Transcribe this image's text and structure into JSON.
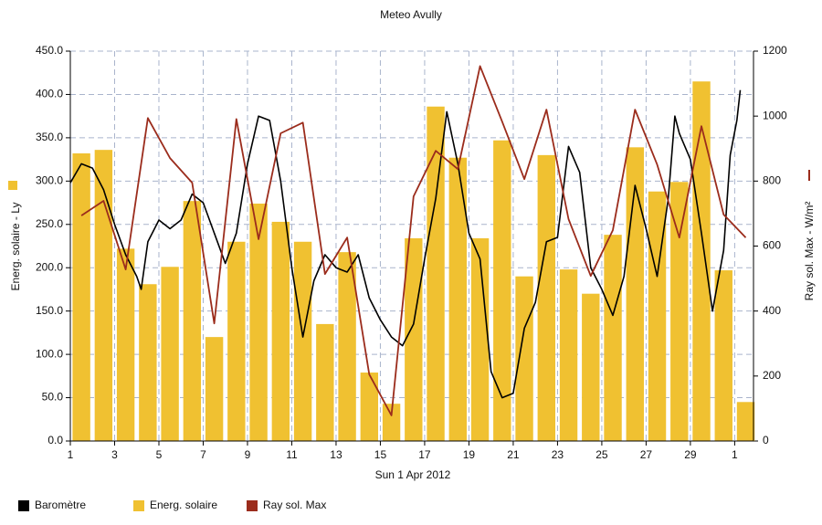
{
  "chart_data": {
    "type": "bar",
    "title": "Meteo  Avully",
    "xlabel": "Sun 1 Apr 2012",
    "ylabel": "Energ. solaire - Ly",
    "y2label": "Ray sol. Max - W/m²",
    "xlim": [
      0,
      30.85
    ],
    "xticks": [
      {
        "value": 0,
        "label": "1"
      },
      {
        "value": 2,
        "label": "3"
      },
      {
        "value": 4,
        "label": "5"
      },
      {
        "value": 6,
        "label": "7"
      },
      {
        "value": 8,
        "label": "9"
      },
      {
        "value": 10,
        "label": "11"
      },
      {
        "value": 12,
        "label": "13"
      },
      {
        "value": 14,
        "label": "15"
      },
      {
        "value": 16,
        "label": "17"
      },
      {
        "value": 18,
        "label": "19"
      },
      {
        "value": 20,
        "label": "21"
      },
      {
        "value": 22,
        "label": "23"
      },
      {
        "value": 24,
        "label": "25"
      },
      {
        "value": 26,
        "label": "27"
      },
      {
        "value": 28,
        "label": "29"
      },
      {
        "value": 30,
        "label": "1"
      }
    ],
    "ylim": [
      0,
      450
    ],
    "yticks": [
      {
        "value": 0,
        "label": "0.0"
      },
      {
        "value": 50,
        "label": "50.0"
      },
      {
        "value": 100,
        "label": "100.0"
      },
      {
        "value": 150,
        "label": "150.0"
      },
      {
        "value": 200,
        "label": "200.0"
      },
      {
        "value": 250,
        "label": "250.0"
      },
      {
        "value": 300,
        "label": "300.0"
      },
      {
        "value": 350,
        "label": "350.0"
      },
      {
        "value": 400,
        "label": "400.0"
      },
      {
        "value": 450,
        "label": "450.0"
      }
    ],
    "y2lim": [
      0,
      1200
    ],
    "y2ticks": [
      0,
      200,
      400,
      600,
      800,
      1000,
      1200
    ],
    "grid": true,
    "legend": "bottom",
    "series": [
      {
        "name": "Baromètre",
        "type": "line",
        "color": "#000000",
        "axis": "y",
        "x": [
          0,
          0.5,
          1,
          1.5,
          2,
          2.5,
          3,
          3.2,
          3.5,
          4,
          4.5,
          5,
          5.5,
          6,
          6.5,
          7,
          7.5,
          8,
          8.5,
          9,
          9.5,
          10,
          10.5,
          11,
          11.5,
          12,
          12.5,
          13,
          13.5,
          14,
          14.5,
          15,
          15.5,
          16,
          16.5,
          17,
          17.5,
          18,
          18.5,
          19,
          19.5,
          20,
          20.5,
          21,
          21.5,
          22,
          22.5,
          23,
          23.5,
          24,
          24.5,
          25,
          25.5,
          26,
          26.5,
          27,
          27.3,
          27.5,
          28,
          28.5,
          29,
          29.5,
          29.8,
          30.1,
          30.25
        ],
        "values": [
          298,
          320,
          315,
          290,
          250,
          215,
          190,
          175,
          230,
          255,
          245,
          255,
          285,
          275,
          240,
          205,
          240,
          320,
          375,
          370,
          300,
          200,
          120,
          185,
          215,
          200,
          195,
          215,
          165,
          140,
          120,
          110,
          135,
          210,
          280,
          380,
          320,
          240,
          210,
          80,
          50,
          55,
          130,
          160,
          230,
          235,
          340,
          310,
          200,
          175,
          145,
          190,
          295,
          245,
          190,
          280,
          375,
          355,
          325,
          240,
          150,
          220,
          330,
          370,
          405
        ]
      },
      {
        "name": "Energ. solaire",
        "type": "bar",
        "color": "#f0c131",
        "axis": "y",
        "x": [
          0.5,
          1.5,
          2.5,
          3.5,
          4.5,
          5.5,
          6.5,
          7.5,
          8.5,
          9.5,
          10.5,
          11.5,
          12.5,
          13.5,
          14.5,
          15.5,
          16.5,
          17.5,
          18.5,
          19.5,
          20.5,
          21.5,
          22.5,
          23.5,
          24.5,
          25.5,
          26.5,
          27.5,
          28.5,
          29.5,
          30.5
        ],
        "values": [
          332,
          336,
          222,
          181,
          201,
          277,
          120,
          230,
          274,
          253,
          230,
          135,
          218,
          79,
          43,
          234,
          386,
          327,
          234,
          347,
          190,
          330,
          198,
          170,
          238,
          339,
          288,
          299,
          415,
          197,
          45
        ]
      },
      {
        "name": "Ray sol. Max",
        "type": "line",
        "color": "#9b2c1c",
        "axis": "y2",
        "x": [
          0.5,
          1.5,
          2.5,
          3.5,
          4.5,
          5.5,
          6.5,
          7.5,
          8.5,
          9.5,
          10.5,
          11.5,
          12.5,
          13.5,
          14.5,
          15.5,
          16.5,
          17.5,
          18.5,
          19.5,
          20.5,
          21.5,
          22.5,
          23.5,
          24.5,
          25.5,
          26.5,
          27.5,
          28.5,
          29.5,
          30.5
        ],
        "values": [
          694,
          739,
          528,
          994,
          871,
          795,
          362,
          991,
          621,
          947,
          980,
          514,
          626,
          205,
          79,
          753,
          893,
          837,
          1154,
          983,
          806,
          1020,
          683,
          508,
          649,
          1020,
          851,
          626,
          969,
          697,
          626
        ]
      }
    ]
  }
}
